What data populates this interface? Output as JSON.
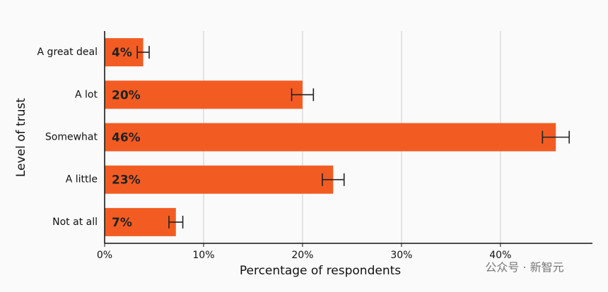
{
  "chart_data": {
    "type": "bar",
    "orientation": "horizontal",
    "x_label": "Percentage of respondents",
    "y_label": "Level of trust",
    "categories": [
      "A great deal",
      "A lot",
      "Somewhat",
      "A little",
      "Not at all"
    ],
    "values": [
      3.9,
      20,
      45.6,
      23.1,
      7.2
    ],
    "value_labels": [
      "4%",
      "20%",
      "46%",
      "23%",
      "7%"
    ],
    "errors": [
      0.6,
      1.1,
      1.35,
      1.1,
      0.7
    ],
    "color": "#f25c22",
    "xlim": [
      0,
      49.3
    ],
    "xticks": [
      {
        "value": 0,
        "label": "0%"
      },
      {
        "value": 10,
        "label": "10%"
      },
      {
        "value": 20,
        "label": "20%"
      },
      {
        "value": 30,
        "label": "30%"
      },
      {
        "value": 40,
        "label": "40%"
      }
    ],
    "grid": true,
    "watermark": "公众号 · 新智元"
  }
}
